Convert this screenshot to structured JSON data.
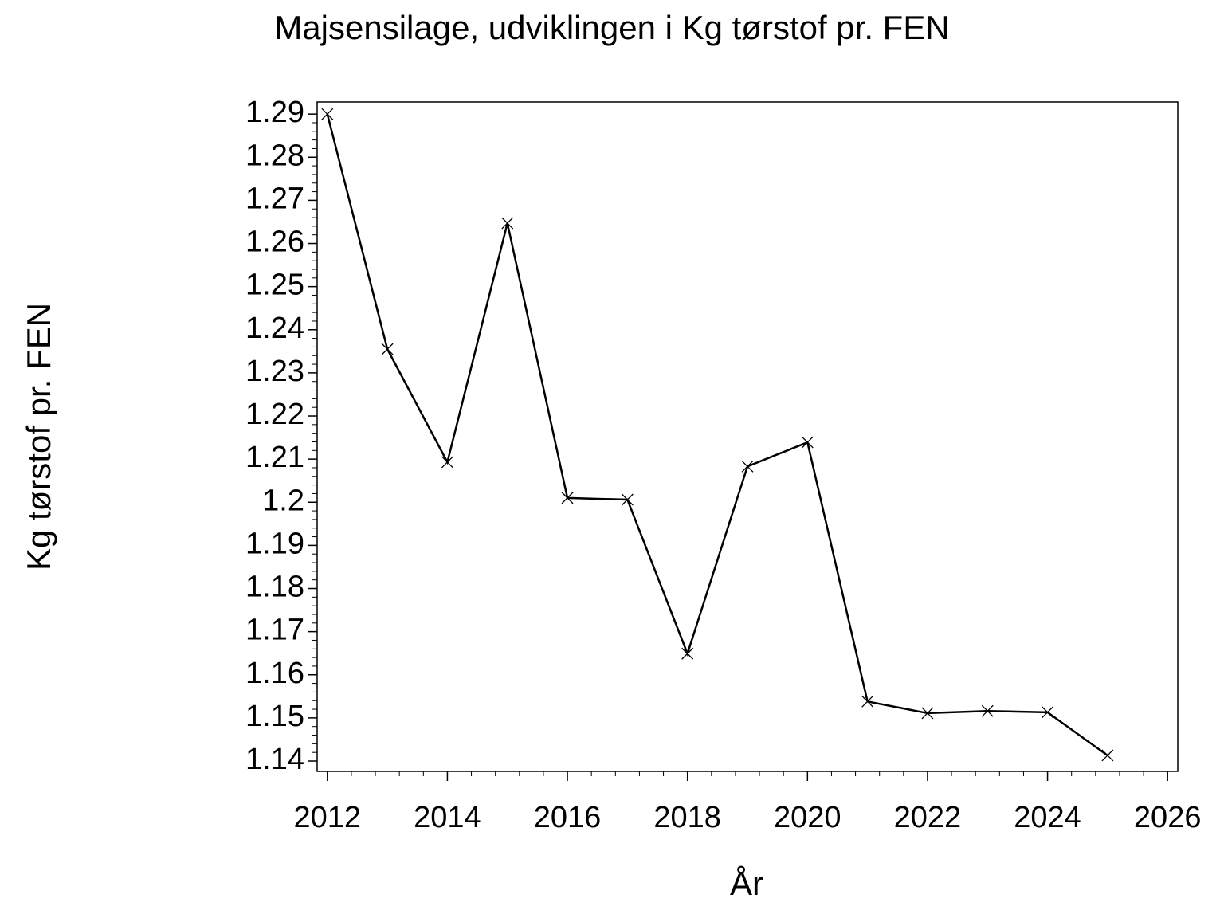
{
  "chart_data": {
    "type": "line",
    "title": "Majsensilage,  udviklingen  i  Kg  tørstof  pr.  FEN",
    "x_label": "År",
    "y_label": "Kg  tørstof  pr.  FEN",
    "x": [
      2012,
      2013,
      2014,
      2015,
      2016,
      2017,
      2018,
      2019,
      2020,
      2021,
      2022,
      2023,
      2024,
      2025
    ],
    "series": [
      {
        "color": "#000000",
        "values": [
          1.29,
          1.2355,
          1.2093,
          1.2647,
          1.201,
          1.2006,
          1.1649,
          1.2083,
          1.2139,
          1.1538,
          1.1511,
          1.1516,
          1.1513,
          1.1413
        ]
      }
    ],
    "xlim": [
      2011.83,
      2026.17
    ],
    "ylim": [
      1.1376,
      1.2928
    ],
    "xticks": [
      2012,
      2014,
      2016,
      2018,
      2020,
      2022,
      2024,
      2026
    ],
    "yticks": [
      1.14,
      1.15,
      1.16,
      1.17,
      1.18,
      1.19,
      1.2,
      1.21,
      1.22,
      1.23,
      1.24,
      1.25,
      1.26,
      1.27,
      1.28,
      1.29
    ],
    "marker": "x"
  }
}
